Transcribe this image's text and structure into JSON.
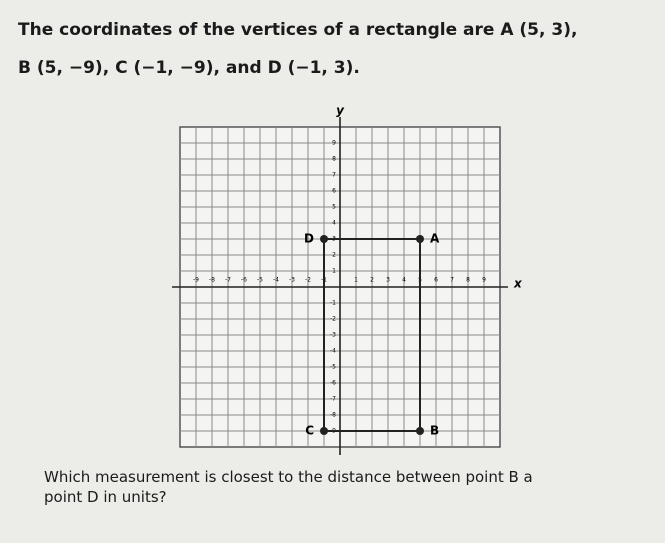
{
  "question": {
    "intro_lines": [
      "The coordinates of the vertices of a rectangle are A (5, 3),",
      "B (5, −9), C (−1, −9), and D (−1, 3)."
    ],
    "prompt_lines": [
      "Which measurement is closest to the distance between point B a",
      "point D in units?"
    ]
  },
  "figure": {
    "x_label": "x",
    "y_label": "y",
    "xlim": [
      -10,
      10
    ],
    "ylim": [
      -10,
      10
    ],
    "xticks": [
      -9,
      -8,
      -7,
      -6,
      -5,
      -4,
      -3,
      -2,
      -1,
      1,
      2,
      3,
      4,
      5,
      6,
      7,
      8,
      9
    ],
    "yticks": [
      -9,
      -8,
      -7,
      -6,
      -5,
      -4,
      -3,
      -2,
      -1,
      1,
      2,
      3,
      4,
      5,
      6,
      7,
      8,
      9
    ],
    "points": [
      {
        "label": "A",
        "x": 5,
        "y": 3
      },
      {
        "label": "B",
        "x": 5,
        "y": -9
      },
      {
        "label": "C",
        "x": -1,
        "y": -9
      },
      {
        "label": "D",
        "x": -1,
        "y": 3
      }
    ]
  }
}
